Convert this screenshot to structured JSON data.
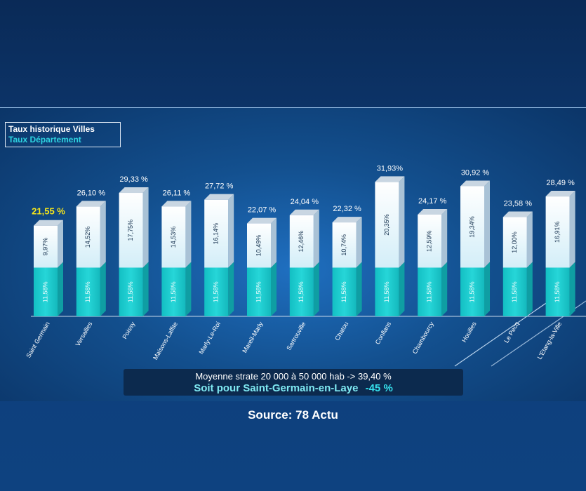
{
  "legend": {
    "historique": "Taux historique Villes",
    "departement": "Taux Département"
  },
  "summary": {
    "line1": "Moyenne strate 20 000 à 50 000 hab -> 39,40 %",
    "line2_prefix": "Soit pour Saint-Germain-en-Laye",
    "line2_value": "-45 %"
  },
  "source": "Source: 78 Actu",
  "colors": {
    "departement": "#18c9cc",
    "historique": "#e9f6fb",
    "highlight_label": "#f6e61a"
  },
  "chart_data": {
    "type": "bar",
    "stacked": true,
    "categories": [
      "Saint Germain",
      "Versailles",
      "Poissy",
      "Maisons-Laffite",
      "Marly-Le-Roi",
      "Mareil-Marly",
      "Sartrouville",
      "Chatou",
      "Conflans",
      "Chambourcy",
      "Houilles",
      "Le Pecq",
      "L'Etang-la-Ville"
    ],
    "series": [
      {
        "name": "Taux Département",
        "values": [
          11.58,
          11.58,
          11.58,
          11.58,
          11.58,
          11.58,
          11.58,
          11.58,
          11.58,
          11.58,
          11.58,
          11.58,
          11.58
        ],
        "labels": [
          "11,58%",
          "11,58%",
          "11,58%",
          "11,58%",
          "11,58%",
          "11,58%",
          "11,58%",
          "11,58%",
          "11,58%",
          "11,58%",
          "11,58%",
          "11,58%",
          "11,58%"
        ]
      },
      {
        "name": "Taux historique Villes",
        "values": [
          9.97,
          14.52,
          17.75,
          14.53,
          16.14,
          10.49,
          12.46,
          10.74,
          20.35,
          12.59,
          19.34,
          12.0,
          16.91
        ],
        "labels": [
          "9,97%",
          "14,52%",
          "17,75%",
          "14,53%",
          "16,14%",
          "10,49%",
          "12,46%",
          "10,74%",
          "20,35%",
          "12,59%",
          "19,34%",
          "12,00%",
          "16,91%"
        ]
      }
    ],
    "totals": [
      21.55,
      26.1,
      29.33,
      26.11,
      27.72,
      22.07,
      24.04,
      22.32,
      31.93,
      24.17,
      30.92,
      23.58,
      28.49
    ],
    "total_labels": [
      "21,55 %",
      "26,10 %",
      "29,33 %",
      "26,11 %",
      "27,72 %",
      "22,07 %",
      "24,04 %",
      "22,32 %",
      "31,93%",
      "24,17 %",
      "30,92 %",
      "23,58 %",
      "28,49 %"
    ],
    "highlight_index": 0,
    "ylim": [
      0,
      32
    ]
  }
}
